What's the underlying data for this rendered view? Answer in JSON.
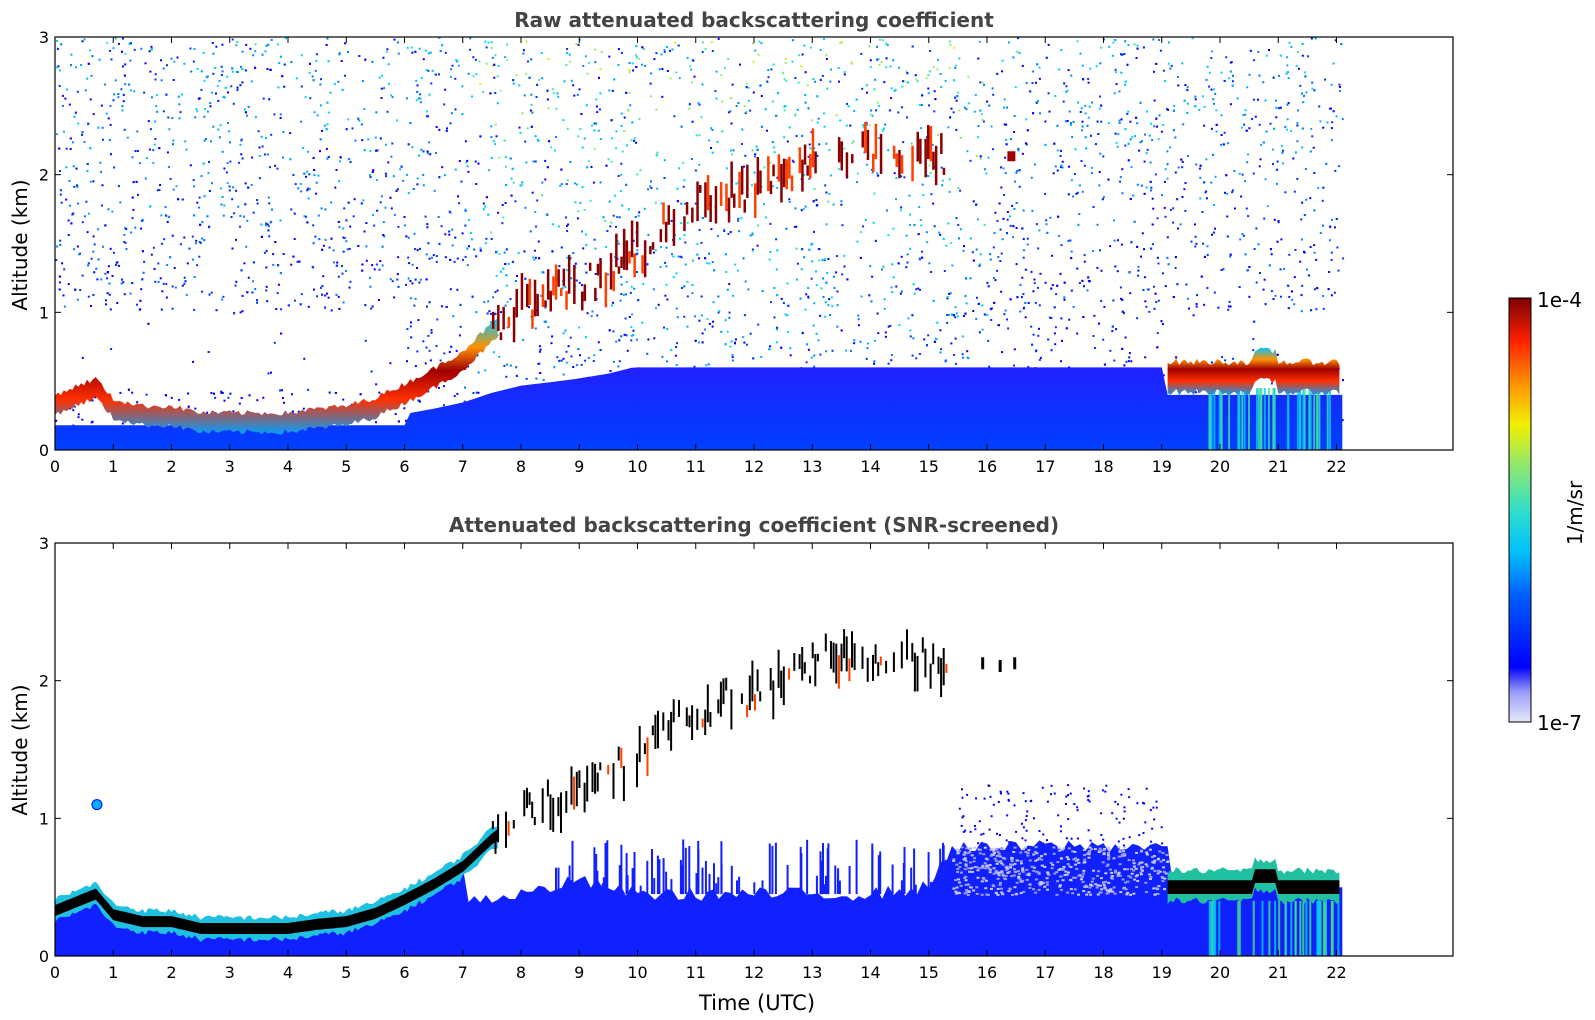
{
  "colors": {
    "jet": [
      "#e6e8fa",
      "#9a9ef5",
      "#0000ff",
      "#0080ff",
      "#00c8ff",
      "#40e0c0",
      "#a0e860",
      "#f0f000",
      "#ff9000",
      "#ff2000",
      "#a00000",
      "#7a0000"
    ],
    "cloud_core": "#7a0000",
    "screened_core": "#000000",
    "frame": "#000000"
  },
  "chart_data": [
    {
      "type": "heatmap",
      "title": "Raw attenuated backscattering coefficient",
      "xlabel": "",
      "ylabel": "Altitude (km)",
      "xlim": [
        0,
        24
      ],
      "ylim": [
        0,
        3
      ],
      "x_ticks": [
        "0",
        "1",
        "2",
        "3",
        "4",
        "5",
        "6",
        "7",
        "8",
        "9",
        "10",
        "11",
        "12",
        "13",
        "14",
        "15",
        "16",
        "17",
        "18",
        "19",
        "20",
        "21",
        "22"
      ],
      "y_ticks": [
        "0",
        "1",
        "2",
        "3"
      ],
      "data_end_time": 22.1,
      "boundary_layer_top_km": [
        [
          0.0,
          0.38
        ],
        [
          0.7,
          0.5
        ],
        [
          1.0,
          0.35
        ],
        [
          1.5,
          0.3
        ],
        [
          2.0,
          0.3
        ],
        [
          2.5,
          0.25
        ],
        [
          3.0,
          0.25
        ],
        [
          4.0,
          0.25
        ],
        [
          4.5,
          0.28
        ],
        [
          5.0,
          0.3
        ],
        [
          5.5,
          0.36
        ],
        [
          6.0,
          0.46
        ],
        [
          6.5,
          0.57
        ],
        [
          7.0,
          0.7
        ],
        [
          7.5,
          0.9
        ],
        [
          8.0,
          1.05
        ],
        [
          8.5,
          1.12
        ],
        [
          9.0,
          1.2
        ],
        [
          9.5,
          1.3
        ],
        [
          10.0,
          1.45
        ],
        [
          10.5,
          1.62
        ],
        [
          11.0,
          1.8
        ],
        [
          11.5,
          1.85
        ],
        [
          12.0,
          1.9
        ],
        [
          12.5,
          2.0
        ],
        [
          13.0,
          2.15
        ],
        [
          13.5,
          2.18
        ],
        [
          14.0,
          2.2
        ],
        [
          14.5,
          2.2
        ],
        [
          15.0,
          2.15
        ],
        [
          15.3,
          2.1
        ]
      ],
      "night_cloud_layer": {
        "t_start": 19.1,
        "t_end": 22.1,
        "altitude_km": 0.52
      },
      "isolated_cloud": {
        "time": 16.45,
        "altitude_km": 2.13
      }
    },
    {
      "type": "heatmap",
      "title": "Attenuated backscattering coefficient (SNR-screened)",
      "xlabel": "Time (UTC)",
      "ylabel": "Altitude (km)",
      "xlim": [
        0,
        24
      ],
      "ylim": [
        0,
        3
      ],
      "x_ticks": [
        "0",
        "1",
        "2",
        "3",
        "4",
        "5",
        "6",
        "7",
        "8",
        "9",
        "10",
        "11",
        "12",
        "13",
        "14",
        "15",
        "16",
        "17",
        "18",
        "19",
        "20",
        "21",
        "22"
      ],
      "y_ticks": [
        "0",
        "1",
        "2",
        "3"
      ],
      "data_end_time": 22.1,
      "screened_noise_top_km": [
        [
          7.0,
          0.4
        ],
        [
          8.0,
          0.45
        ],
        [
          9.0,
          0.55
        ],
        [
          10.0,
          0.45
        ],
        [
          11.0,
          0.45
        ],
        [
          12.0,
          0.45
        ],
        [
          13.0,
          0.45
        ],
        [
          14.0,
          0.45
        ],
        [
          15.0,
          0.5
        ],
        [
          15.4,
          0.8
        ],
        [
          16.0,
          0.78
        ],
        [
          17.0,
          0.8
        ],
        [
          18.0,
          0.8
        ],
        [
          19.0,
          0.8
        ]
      ],
      "small_feature": {
        "time": 0.72,
        "altitude_km": 1.1
      }
    }
  ],
  "colorbar": {
    "label": "1/m/sr",
    "max_label": "1e-4",
    "min_label": "1e-7"
  }
}
